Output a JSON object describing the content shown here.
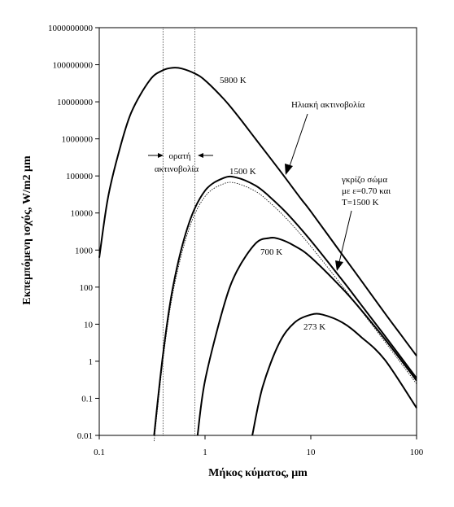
{
  "chart_data": {
    "type": "line",
    "title": "",
    "xlabel": "Μήκος κύματος,  μm",
    "ylabel": "Εκπεμπόμενη ισχύς, W/m2 μm",
    "xscale": "log",
    "yscale": "log",
    "xlim": [
      0.1,
      100
    ],
    "ylim": [
      0.01,
      1000000000
    ],
    "x_ticks": [
      "0.1",
      "1",
      "10",
      "100"
    ],
    "y_ticks": [
      "0.01",
      "0.1",
      "1",
      "10",
      "100",
      "1000",
      "10000",
      "100000",
      "1000000",
      "10000000",
      "100000000",
      "1000000000"
    ],
    "grid": false,
    "legend": "none",
    "series": [
      {
        "name": "5800 K",
        "points": [
          [
            0.1,
            622
          ],
          [
            0.12,
            23000
          ],
          [
            0.15,
            350000
          ],
          [
            0.2,
            5000000
          ],
          [
            0.3,
            38000000
          ],
          [
            0.4,
            71000000
          ],
          [
            0.5,
            83000000
          ],
          [
            0.6,
            79000000
          ],
          [
            0.8,
            58000000
          ],
          [
            1.0,
            38000000
          ],
          [
            1.5,
            12000000
          ],
          [
            2,
            4500000
          ],
          [
            3,
            1000000
          ],
          [
            5,
            150000
          ],
          [
            8,
            25000
          ],
          [
            10,
            11000
          ],
          [
            20,
            730
          ],
          [
            30,
            150
          ],
          [
            50,
            20
          ],
          [
            70,
            5.5
          ],
          [
            100,
            1.4
          ]
        ]
      },
      {
        "name": "1500 K",
        "points": [
          [
            0.33,
            0.01
          ],
          [
            0.4,
            1.5
          ],
          [
            0.5,
            110
          ],
          [
            0.7,
            5000
          ],
          [
            1.0,
            40000
          ],
          [
            1.5,
            88000
          ],
          [
            2.0,
            90000
          ],
          [
            3.0,
            55000
          ],
          [
            4.0,
            29000
          ],
          [
            6.0,
            9500
          ],
          [
            10,
            1800
          ],
          [
            20,
            150
          ],
          [
            30,
            33
          ],
          [
            50,
            4.9
          ],
          [
            100,
            0.35
          ]
        ]
      },
      {
        "name": "γκρίζο σώμα με ε=0.70 και T=1500 K",
        "style": "dotted",
        "points": [
          [
            0.33,
            0.007
          ],
          [
            0.4,
            1.05
          ],
          [
            0.5,
            77
          ],
          [
            0.7,
            3500
          ],
          [
            1.0,
            28000
          ],
          [
            1.5,
            61600
          ],
          [
            2.0,
            63000
          ],
          [
            3.0,
            38500
          ],
          [
            4.0,
            20300
          ],
          [
            6.0,
            6650
          ],
          [
            10,
            1260
          ],
          [
            20,
            105
          ],
          [
            30,
            23
          ],
          [
            50,
            3.4
          ],
          [
            100,
            0.245
          ]
        ]
      },
      {
        "name": "700 K",
        "points": [
          [
            0.85,
            0.01
          ],
          [
            1.0,
            0.3
          ],
          [
            1.5,
            30
          ],
          [
            2.0,
            270
          ],
          [
            3.0,
            1500
          ],
          [
            4.0,
            2100
          ],
          [
            5.0,
            2000
          ],
          [
            7.0,
            1300
          ],
          [
            10,
            640
          ],
          [
            20,
            90
          ],
          [
            30,
            24
          ],
          [
            50,
            4
          ],
          [
            100,
            0.3
          ]
        ]
      },
      {
        "name": "273 K",
        "points": [
          [
            2.8,
            0.01
          ],
          [
            3.5,
            0.2
          ],
          [
            5.0,
            3
          ],
          [
            7.0,
            11
          ],
          [
            10,
            18
          ],
          [
            13,
            18
          ],
          [
            20,
            11
          ],
          [
            30,
            4.5
          ],
          [
            50,
            1.1
          ],
          [
            100,
            0.055
          ]
        ]
      }
    ],
    "annotations": {
      "label_5800": "5800 K",
      "label_1500": "1500 K",
      "label_700": "700 K",
      "label_273": "273 K",
      "solar_label": "Ηλιακή ακτινοβολία",
      "gray_line1": "γκρίζο σώμα",
      "gray_line2": "με ε=0.70 και",
      "gray_line3": "T=1500 K",
      "visible_line1": "ορατή",
      "visible_line2": "ακτινοβολία",
      "visible_range": [
        0.4,
        0.8
      ]
    }
  }
}
